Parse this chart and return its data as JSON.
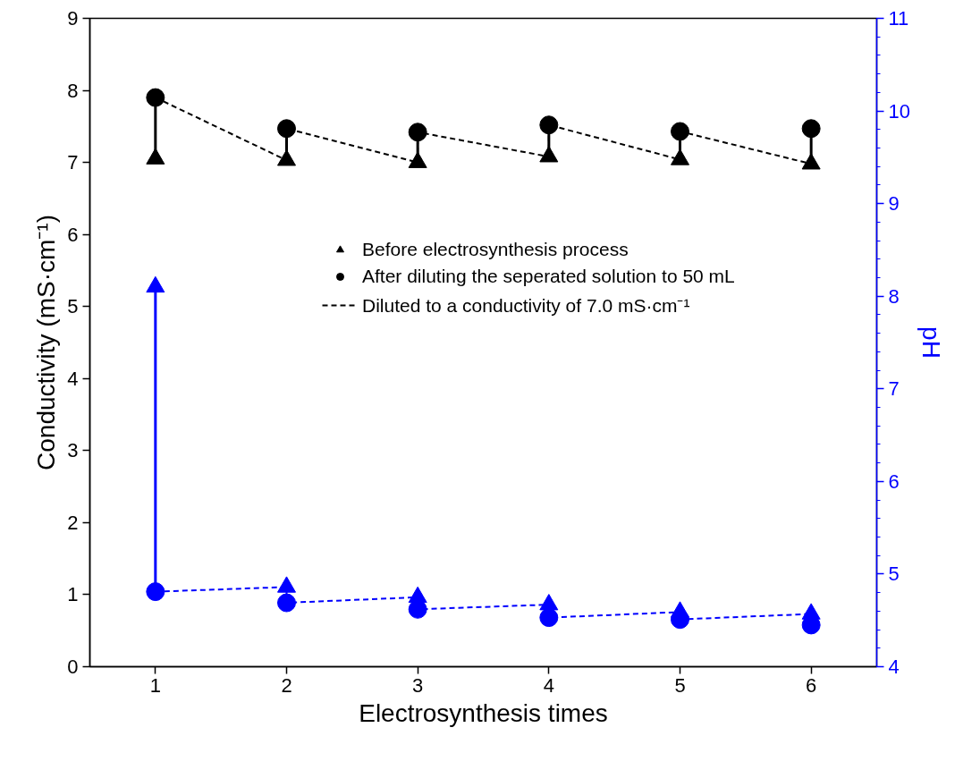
{
  "chart_data": {
    "type": "scatter",
    "xlabel": "Electrosynthesis times",
    "ylabel": "Conductivity (mS·cm⁻¹)",
    "y2label": "pH",
    "x": [
      1,
      2,
      3,
      4,
      5,
      6
    ],
    "series": [
      {
        "name": "Before electrosynthesis process",
        "marker": "triangle",
        "color": "#000000",
        "values": [
          7.05,
          7.03,
          7.0,
          7.08,
          7.04,
          6.98
        ]
      },
      {
        "name": "After diluting the seperated solution to 50 mL",
        "marker": "circle",
        "color": "#000000",
        "values": [
          7.9,
          7.47,
          7.42,
          7.52,
          7.43,
          7.47
        ]
      },
      {
        "name": "Diluted to a conductivity of 7.0 mS·cm⁻¹",
        "type": "line",
        "line_style": "dashed",
        "color": "#000000",
        "x": [
          1,
          2,
          2,
          3,
          3,
          4,
          4,
          5,
          5,
          6
        ],
        "values": [
          7.9,
          7.03,
          7.47,
          7.0,
          7.42,
          7.08,
          7.52,
          7.04,
          7.43,
          6.98
        ]
      },
      {
        "type": "line",
        "line_style": "solid",
        "color": "#000000",
        "x": [
          1,
          1
        ],
        "values": [
          7.05,
          7.9
        ]
      },
      {
        "type": "line",
        "line_style": "solid",
        "color": "#000000",
        "x": [
          2,
          2
        ],
        "values": [
          7.03,
          7.47
        ]
      },
      {
        "type": "line",
        "line_style": "solid",
        "color": "#000000",
        "x": [
          3,
          3
        ],
        "values": [
          7.0,
          7.42
        ]
      },
      {
        "type": "line",
        "line_style": "solid",
        "color": "#000000",
        "x": [
          4,
          4
        ],
        "values": [
          7.08,
          7.52
        ]
      },
      {
        "type": "line",
        "line_style": "solid",
        "color": "#000000",
        "x": [
          5,
          5
        ],
        "values": [
          7.04,
          7.43
        ]
      },
      {
        "type": "line",
        "line_style": "solid",
        "color": "#000000",
        "x": [
          6,
          6
        ],
        "values": [
          6.98,
          7.47
        ]
      },
      {
        "marker": "triangle",
        "color": "#0000ff",
        "axis": "y2",
        "values": [
          8.1,
          4.86,
          4.75,
          4.67,
          4.59,
          4.57
        ]
      },
      {
        "marker": "circle",
        "color": "#0000ff",
        "axis": "y2",
        "values": [
          4.81,
          4.69,
          4.62,
          4.53,
          4.51,
          4.45
        ]
      },
      {
        "type": "line",
        "line_style": "dashed",
        "color": "#0000ff",
        "axis": "y2",
        "x": [
          1,
          2,
          2,
          3,
          3,
          4,
          4,
          5,
          5,
          6
        ],
        "values": [
          4.81,
          4.86,
          4.69,
          4.75,
          4.62,
          4.67,
          4.53,
          4.59,
          4.51,
          4.57
        ]
      },
      {
        "type": "line",
        "line_style": "solid",
        "color": "#0000ff",
        "axis": "y2",
        "x": [
          1,
          1
        ],
        "values": [
          4.81,
          8.1
        ]
      }
    ],
    "xlim": [
      0.5,
      6.5
    ],
    "xticks": [
      1,
      2,
      3,
      4,
      5,
      6
    ],
    "ylim": [
      0,
      9
    ],
    "yticks": [
      0,
      1,
      2,
      3,
      4,
      5,
      6,
      7,
      8,
      9
    ],
    "y2lim": [
      4,
      11
    ],
    "y2ticks": [
      4,
      5,
      6,
      7,
      8,
      9,
      10,
      11
    ],
    "legend": "center",
    "grid": false
  }
}
